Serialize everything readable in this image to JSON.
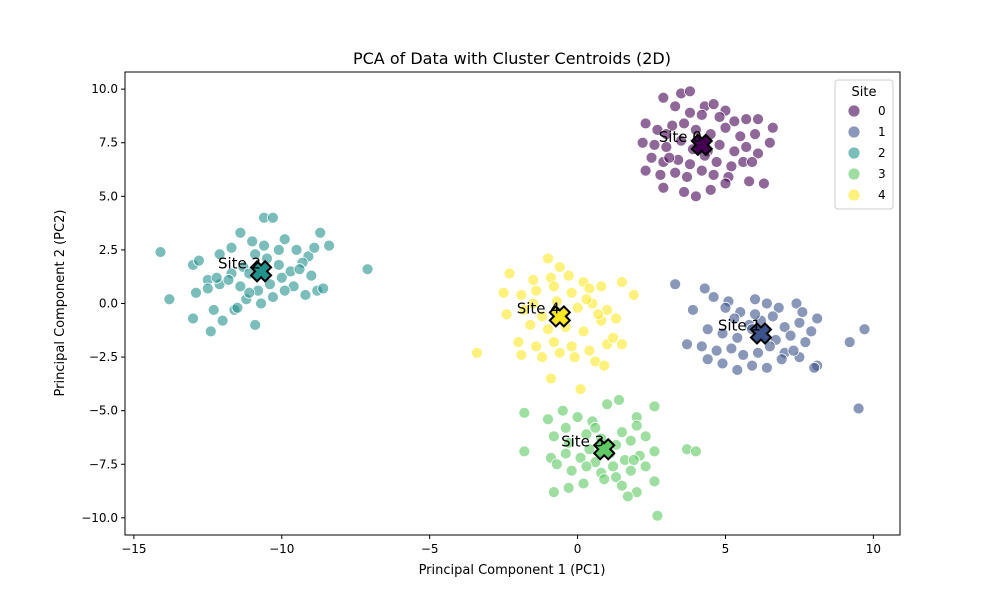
{
  "chart_data": {
    "type": "scatter",
    "title": "PCA of Data with Cluster Centroids (2D)",
    "xlabel": "Principal Component 1 (PC1)",
    "ylabel": "Principal Component 2 (PC2)",
    "xlim": [
      -15.3,
      10.9
    ],
    "ylim": [
      -10.8,
      10.8
    ],
    "xticks": [
      -15,
      -10,
      -5,
      0,
      5,
      10
    ],
    "xtick_labels": [
      "−15",
      "−10",
      "−5",
      "0",
      "5",
      "10"
    ],
    "yticks": [
      -10,
      -7.5,
      -5,
      -2.5,
      0,
      2.5,
      5,
      7.5,
      10
    ],
    "ytick_labels": [
      "−10.0",
      "−7.5",
      "−5.0",
      "−2.5",
      "0.0",
      "2.5",
      "5.0",
      "7.5",
      "10.0"
    ],
    "grid": false,
    "legend": {
      "title": "Site",
      "placement": "upper right",
      "entries": [
        "0",
        "1",
        "2",
        "3",
        "4"
      ]
    },
    "series": [
      {
        "name": "0",
        "color": "#440154",
        "points": [
          [
            3.5,
            9.8
          ],
          [
            3.8,
            9.9
          ],
          [
            4.3,
            9.2
          ],
          [
            4.6,
            9.3
          ],
          [
            5.0,
            9.0
          ],
          [
            2.9,
            9.6
          ],
          [
            3.3,
            9.2
          ],
          [
            3.8,
            8.9
          ],
          [
            4.2,
            8.8
          ],
          [
            4.8,
            8.7
          ],
          [
            5.3,
            8.5
          ],
          [
            5.7,
            8.6
          ],
          [
            6.1,
            8.6
          ],
          [
            6.6,
            8.2
          ],
          [
            2.3,
            8.4
          ],
          [
            2.7,
            8.1
          ],
          [
            3.2,
            8.3
          ],
          [
            3.6,
            8.4
          ],
          [
            4.0,
            8.1
          ],
          [
            4.5,
            7.9
          ],
          [
            5.0,
            8.2
          ],
          [
            5.5,
            7.8
          ],
          [
            6.0,
            7.9
          ],
          [
            6.5,
            7.5
          ],
          [
            2.2,
            7.5
          ],
          [
            2.6,
            7.4
          ],
          [
            3.0,
            7.3
          ],
          [
            3.5,
            7.6
          ],
          [
            3.9,
            7.2
          ],
          [
            4.4,
            7.1
          ],
          [
            4.8,
            7.4
          ],
          [
            5.3,
            7.1
          ],
          [
            5.7,
            7.3
          ],
          [
            6.1,
            7.0
          ],
          [
            2.5,
            6.8
          ],
          [
            2.9,
            6.6
          ],
          [
            3.4,
            6.7
          ],
          [
            3.8,
            6.5
          ],
          [
            4.3,
            6.9
          ],
          [
            4.7,
            6.6
          ],
          [
            5.2,
            6.4
          ],
          [
            5.6,
            6.6
          ],
          [
            2.3,
            6.2
          ],
          [
            2.8,
            6.0
          ],
          [
            3.3,
            6.1
          ],
          [
            3.7,
            5.9
          ],
          [
            4.2,
            6.2
          ],
          [
            4.6,
            6.0
          ],
          [
            5.1,
            5.9
          ],
          [
            5.8,
            5.7
          ],
          [
            6.3,
            5.6
          ],
          [
            2.9,
            5.4
          ],
          [
            3.6,
            5.2
          ],
          [
            4.0,
            5.0
          ],
          [
            4.5,
            5.3
          ],
          [
            5.0,
            5.6
          ],
          [
            3.1,
            6.8
          ],
          [
            4.1,
            7.6
          ],
          [
            5.9,
            6.6
          ],
          [
            3.0,
            7.9
          ]
        ]
      },
      {
        "name": "1",
        "color": "#3b528b",
        "points": [
          [
            3.3,
            0.9
          ],
          [
            4.3,
            0.7
          ],
          [
            4.6,
            0.3
          ],
          [
            3.9,
            -0.3
          ],
          [
            5.1,
            0.1
          ],
          [
            5.5,
            -0.4
          ],
          [
            6.0,
            0.2
          ],
          [
            6.4,
            0.0
          ],
          [
            6.8,
            -0.2
          ],
          [
            7.4,
            0.0
          ],
          [
            7.6,
            -0.4
          ],
          [
            8.1,
            -0.7
          ],
          [
            5.3,
            -0.7
          ],
          [
            5.8,
            -1.0
          ],
          [
            6.2,
            -0.8
          ],
          [
            6.6,
            -0.6
          ],
          [
            7.0,
            -1.1
          ],
          [
            7.5,
            -0.9
          ],
          [
            7.9,
            -1.3
          ],
          [
            4.4,
            -1.2
          ],
          [
            4.9,
            -1.4
          ],
          [
            5.4,
            -1.6
          ],
          [
            5.9,
            -1.2
          ],
          [
            6.3,
            -1.5
          ],
          [
            6.7,
            -1.7
          ],
          [
            7.2,
            -1.5
          ],
          [
            7.7,
            -1.8
          ],
          [
            3.7,
            -1.9
          ],
          [
            4.2,
            -2.0
          ],
          [
            4.7,
            -2.2
          ],
          [
            5.2,
            -2.1
          ],
          [
            5.6,
            -2.4
          ],
          [
            6.1,
            -2.3
          ],
          [
            6.5,
            -2.0
          ],
          [
            7.0,
            -2.3
          ],
          [
            7.5,
            -2.5
          ],
          [
            8.1,
            -2.9
          ],
          [
            4.4,
            -2.6
          ],
          [
            4.9,
            -2.8
          ],
          [
            5.4,
            -3.1
          ],
          [
            5.9,
            -2.9
          ],
          [
            6.4,
            -3.0
          ],
          [
            6.9,
            -2.6
          ],
          [
            7.3,
            -2.2
          ],
          [
            8.0,
            -3.0
          ],
          [
            9.2,
            -1.8
          ],
          [
            9.7,
            -1.2
          ],
          [
            9.5,
            -4.9
          ],
          [
            5.0,
            -0.2
          ],
          [
            6.0,
            -0.5
          ]
        ]
      },
      {
        "name": "2",
        "color": "#21918c",
        "points": [
          [
            -14.1,
            2.4
          ],
          [
            -13.8,
            0.2
          ],
          [
            -13.0,
            1.8
          ],
          [
            -12.8,
            2.0
          ],
          [
            -12.5,
            1.1
          ],
          [
            -12.1,
            2.3
          ],
          [
            -11.7,
            2.6
          ],
          [
            -11.4,
            3.3
          ],
          [
            -11.0,
            2.9
          ],
          [
            -10.6,
            4.0
          ],
          [
            -10.3,
            4.0
          ],
          [
            -9.9,
            3.0
          ],
          [
            -9.5,
            2.5
          ],
          [
            -9.1,
            2.2
          ],
          [
            -8.7,
            3.3
          ],
          [
            -8.4,
            2.7
          ],
          [
            -8.9,
            2.6
          ],
          [
            -9.3,
            1.9
          ],
          [
            -9.7,
            1.5
          ],
          [
            -10.1,
            1.8
          ],
          [
            -10.5,
            2.1
          ],
          [
            -10.9,
            2.3
          ],
          [
            -11.3,
            1.7
          ],
          [
            -11.7,
            1.4
          ],
          [
            -12.1,
            0.9
          ],
          [
            -12.5,
            0.7
          ],
          [
            -12.9,
            0.5
          ],
          [
            -13.0,
            -0.7
          ],
          [
            -12.4,
            -1.3
          ],
          [
            -12.0,
            -0.8
          ],
          [
            -11.6,
            -0.3
          ],
          [
            -11.2,
            0.2
          ],
          [
            -10.8,
            0.6
          ],
          [
            -10.4,
            0.9
          ],
          [
            -10.0,
            1.2
          ],
          [
            -9.6,
            0.8
          ],
          [
            -9.2,
            0.4
          ],
          [
            -8.8,
            0.6
          ],
          [
            -8.6,
            0.7
          ],
          [
            -9.9,
            0.6
          ],
          [
            -10.3,
            0.3
          ],
          [
            -10.7,
            0.0
          ],
          [
            -11.1,
            0.5
          ],
          [
            -11.4,
            0.8
          ],
          [
            -11.8,
            1.1
          ],
          [
            -12.2,
            1.2
          ],
          [
            -10.9,
            -1.0
          ],
          [
            -11.5,
            -0.2
          ],
          [
            -9.4,
            1.6
          ],
          [
            -7.1,
            1.6
          ],
          [
            -12.3,
            -0.3
          ],
          [
            -10.1,
            2.5
          ],
          [
            -11.1,
            1.4
          ],
          [
            -9.0,
            1.3
          ],
          [
            -10.6,
            2.7
          ]
        ]
      },
      {
        "name": "3",
        "color": "#5ec962",
        "points": [
          [
            -1.8,
            -5.1
          ],
          [
            -1.0,
            -5.4
          ],
          [
            -0.5,
            -5.0
          ],
          [
            0.0,
            -5.3
          ],
          [
            0.5,
            -5.5
          ],
          [
            1.0,
            -4.7
          ],
          [
            1.4,
            -4.5
          ],
          [
            2.0,
            -5.3
          ],
          [
            2.6,
            -4.8
          ],
          [
            -1.8,
            -6.9
          ],
          [
            -0.8,
            -6.2
          ],
          [
            -0.3,
            -6.5
          ],
          [
            0.3,
            -6.1
          ],
          [
            0.8,
            -6.3
          ],
          [
            1.3,
            -6.6
          ],
          [
            1.8,
            -6.4
          ],
          [
            2.3,
            -6.2
          ],
          [
            -0.9,
            -7.2
          ],
          [
            -0.4,
            -7.0
          ],
          [
            0.1,
            -7.2
          ],
          [
            0.6,
            -7.4
          ],
          [
            1.1,
            -7.0
          ],
          [
            1.6,
            -7.3
          ],
          [
            2.1,
            -7.1
          ],
          [
            2.6,
            -6.9
          ],
          [
            3.7,
            -6.8
          ],
          [
            4.0,
            -6.9
          ],
          [
            -0.7,
            -7.5
          ],
          [
            -0.2,
            -7.8
          ],
          [
            0.3,
            -7.6
          ],
          [
            0.8,
            -7.9
          ],
          [
            1.3,
            -8.1
          ],
          [
            1.8,
            -7.8
          ],
          [
            2.3,
            -7.6
          ],
          [
            -0.8,
            -8.8
          ],
          [
            -0.3,
            -8.6
          ],
          [
            0.2,
            -8.4
          ],
          [
            0.9,
            -8.2
          ],
          [
            1.5,
            -8.5
          ],
          [
            2.0,
            -8.8
          ],
          [
            2.6,
            -8.3
          ],
          [
            1.7,
            -9.0
          ],
          [
            2.7,
            -9.9
          ],
          [
            -0.4,
            -5.8
          ],
          [
            0.6,
            -5.8
          ],
          [
            1.5,
            -6.0
          ],
          [
            2.0,
            -5.7
          ],
          [
            1.2,
            -7.6
          ],
          [
            0.4,
            -6.8
          ],
          [
            1.9,
            -7.3
          ]
        ]
      },
      {
        "name": "4",
        "color": "#fde725",
        "points": [
          [
            -1.0,
            2.1
          ],
          [
            -0.6,
            1.7
          ],
          [
            -0.3,
            1.3
          ],
          [
            0.2,
            1.0
          ],
          [
            -2.3,
            1.4
          ],
          [
            -1.5,
            1.1
          ],
          [
            -0.9,
            1.2
          ],
          [
            -2.5,
            0.5
          ],
          [
            -1.9,
            0.4
          ],
          [
            -1.4,
            0.6
          ],
          [
            -0.8,
            0.8
          ],
          [
            -0.2,
            0.5
          ],
          [
            0.4,
            0.7
          ],
          [
            0.8,
            0.8
          ],
          [
            1.5,
            1.0
          ],
          [
            1.9,
            0.4
          ],
          [
            -2.4,
            -0.5
          ],
          [
            -1.8,
            -0.3
          ],
          [
            -1.2,
            -0.6
          ],
          [
            -0.6,
            -0.4
          ],
          [
            0.0,
            -0.2
          ],
          [
            0.5,
            0.0
          ],
          [
            1.0,
            -0.3
          ],
          [
            -1.6,
            -1.0
          ],
          [
            -1.0,
            -1.2
          ],
          [
            -0.4,
            -1.1
          ],
          [
            0.2,
            -1.3
          ],
          [
            0.8,
            -0.8
          ],
          [
            1.3,
            -0.7
          ],
          [
            -2.0,
            -1.8
          ],
          [
            -1.4,
            -2.0
          ],
          [
            -0.8,
            -1.8
          ],
          [
            -0.2,
            -2.0
          ],
          [
            0.4,
            -2.2
          ],
          [
            1.0,
            -1.9
          ],
          [
            1.5,
            -1.9
          ],
          [
            -1.2,
            -2.5
          ],
          [
            -0.6,
            -2.3
          ],
          [
            -0.1,
            -2.5
          ],
          [
            0.6,
            -2.7
          ],
          [
            -0.9,
            -3.5
          ],
          [
            0.1,
            -4.0
          ],
          [
            -3.4,
            -2.3
          ],
          [
            -1.9,
            -2.4
          ],
          [
            0.9,
            -2.9
          ],
          [
            1.2,
            -1.6
          ],
          [
            -1.5,
            0.0
          ],
          [
            0.3,
            0.2
          ],
          [
            -0.7,
            0.1
          ],
          [
            0.7,
            -0.5
          ]
        ]
      }
    ],
    "centroids": [
      {
        "label": "Site 0",
        "series": "0",
        "x": 4.2,
        "y": 7.4
      },
      {
        "label": "Site 1",
        "series": "1",
        "x": 6.2,
        "y": -1.4
      },
      {
        "label": "Site 2",
        "series": "2",
        "x": -10.7,
        "y": 1.5
      },
      {
        "label": "Site 3",
        "series": "3",
        "x": 0.9,
        "y": -6.8
      },
      {
        "label": "Site 4",
        "series": "4",
        "x": -0.6,
        "y": -0.6
      }
    ]
  }
}
